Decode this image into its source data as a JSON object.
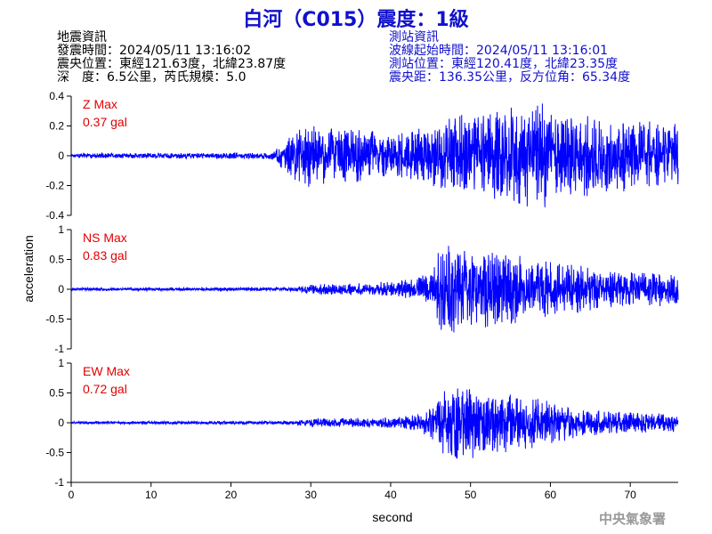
{
  "header": {
    "title": "白河（C015）震度：1級"
  },
  "quake_info": {
    "heading": "地震資訊",
    "origin_time": "發震時間：2024/05/11 13:16:02",
    "epicenter": "震央位置：東經121.63度，北緯23.87度",
    "depth_magnitude": "深　度：6.5公里，芮氏規模：5.0"
  },
  "station_info": {
    "heading": "測站資訊",
    "wave_start": "波線起始時間：2024/05/11 13:16:01",
    "station_position": "測站位置：東經120.41度，北緯23.35度",
    "distance": "震央距：136.35公里，反方位角：65.34度"
  },
  "footer": {
    "agency": "中央氣象署"
  },
  "chart_data": {
    "type": "line",
    "xlabel": "second",
    "ylabel": "acceleration",
    "xlim": [
      0,
      76
    ],
    "x_ticks": [
      0,
      10,
      20,
      30,
      40,
      50,
      60,
      70
    ],
    "line_color": "#0000ff",
    "max_label_color": "#e00000",
    "panels": [
      {
        "name": "Z Max",
        "max_value": "0.37 gal",
        "ylim": [
          -0.4,
          0.4
        ],
        "y_ticks": [
          0.4,
          0.2,
          0,
          -0.2,
          -0.4
        ],
        "y_tick_labels": [
          "0.4",
          "0.2",
          "0",
          "-0.2",
          "-0.4"
        ],
        "envelope": [
          [
            0,
            0.015
          ],
          [
            25,
            0.02
          ],
          [
            27,
            0.1
          ],
          [
            28,
            0.18
          ],
          [
            30,
            0.2
          ],
          [
            35,
            0.17
          ],
          [
            40,
            0.14
          ],
          [
            45,
            0.18
          ],
          [
            47,
            0.24
          ],
          [
            50,
            0.26
          ],
          [
            55,
            0.3
          ],
          [
            59,
            0.34
          ],
          [
            62,
            0.28
          ],
          [
            66,
            0.24
          ],
          [
            70,
            0.22
          ],
          [
            76,
            0.2
          ]
        ]
      },
      {
        "name": "NS Max",
        "max_value": "0.83 gal",
        "ylim": [
          -1,
          1
        ],
        "y_ticks": [
          1,
          0.5,
          0,
          -0.5,
          -1
        ],
        "y_tick_labels": [
          "1",
          "0.5",
          "0",
          "-0.5",
          "-1"
        ],
        "envelope": [
          [
            0,
            0.02
          ],
          [
            28,
            0.03
          ],
          [
            30,
            0.08
          ],
          [
            38,
            0.1
          ],
          [
            42,
            0.15
          ],
          [
            45,
            0.25
          ],
          [
            46,
            0.6
          ],
          [
            47,
            0.75
          ],
          [
            50,
            0.65
          ],
          [
            55,
            0.55
          ],
          [
            58,
            0.45
          ],
          [
            62,
            0.4
          ],
          [
            66,
            0.32
          ],
          [
            70,
            0.28
          ],
          [
            76,
            0.25
          ]
        ]
      },
      {
        "name": "EW Max",
        "max_value": "0.72 gal",
        "ylim": [
          -1,
          1
        ],
        "y_ticks": [
          1,
          0.5,
          0,
          -0.5,
          -1
        ],
        "y_tick_labels": [
          "1",
          "0.5",
          "0",
          "-0.5",
          "-1"
        ],
        "envelope": [
          [
            0,
            0.02
          ],
          [
            28,
            0.03
          ],
          [
            30,
            0.07
          ],
          [
            40,
            0.08
          ],
          [
            44,
            0.15
          ],
          [
            46,
            0.45
          ],
          [
            47,
            0.62
          ],
          [
            50,
            0.55
          ],
          [
            55,
            0.45
          ],
          [
            60,
            0.35
          ],
          [
            64,
            0.22
          ],
          [
            68,
            0.18
          ],
          [
            72,
            0.15
          ],
          [
            76,
            0.14
          ]
        ]
      }
    ]
  }
}
